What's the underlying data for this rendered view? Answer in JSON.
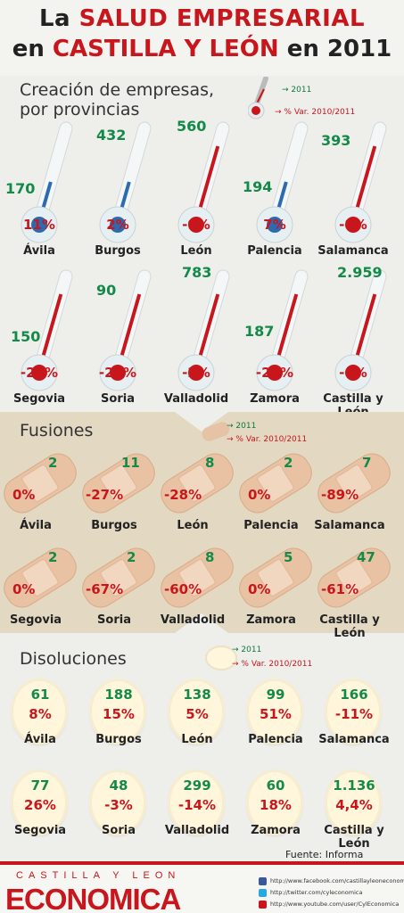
{
  "header": {
    "line1_a": "La ",
    "line1_b": "SALUD EMPRESARIAL",
    "line2_a": "en ",
    "line2_b": "CASTILLA Y LEÓN",
    "line2_c": " en 2011"
  },
  "creacion": {
    "title_l1": "Creación de empresas,",
    "title_l2": "por provincias",
    "legend_year": "2011",
    "legend_var": "% Var. 2010/2011",
    "items": [
      {
        "name": "Ávila",
        "value": "170",
        "pct": "11%",
        "trend": "up"
      },
      {
        "name": "Burgos",
        "value": "432",
        "pct": "2%",
        "trend": "up"
      },
      {
        "name": "León",
        "value": "560",
        "pct": "-9%",
        "trend": "down"
      },
      {
        "name": "Palencia",
        "value": "194",
        "pct": "7%",
        "trend": "up"
      },
      {
        "name": "Salamanca",
        "value": "393",
        "pct": "-8%",
        "trend": "down"
      },
      {
        "name": "Segovia",
        "value": "150",
        "pct": "-27%",
        "trend": "down"
      },
      {
        "name": "Soria",
        "value": "90",
        "pct": "-28%",
        "trend": "down"
      },
      {
        "name": "Valladolid",
        "value": "783",
        "pct": "-2%",
        "trend": "down"
      },
      {
        "name": "Zamora",
        "value": "187",
        "pct": "-20%",
        "trend": "down"
      },
      {
        "name": "Castilla y León",
        "value": "2.959",
        "pct": "-6%",
        "trend": "down"
      }
    ]
  },
  "fusiones": {
    "title": "Fusiones",
    "legend_year": "2011",
    "legend_var": "% Var. 2010/2011",
    "items": [
      {
        "name": "Ávila",
        "value": "2",
        "pct": "0%"
      },
      {
        "name": "Burgos",
        "value": "11",
        "pct": "-27%"
      },
      {
        "name": "León",
        "value": "8",
        "pct": "-28%"
      },
      {
        "name": "Palencia",
        "value": "2",
        "pct": "0%"
      },
      {
        "name": "Salamanca",
        "value": "7",
        "pct": "-89%"
      },
      {
        "name": "Segovia",
        "value": "2",
        "pct": "0%"
      },
      {
        "name": "Soria",
        "value": "2",
        "pct": "-67%"
      },
      {
        "name": "Valladolid",
        "value": "8",
        "pct": "-60%"
      },
      {
        "name": "Zamora",
        "value": "5",
        "pct": "0%"
      },
      {
        "name": "Castilla y León",
        "value": "47",
        "pct": "-61%"
      }
    ]
  },
  "disoluciones": {
    "title": "Disoluciones",
    "legend_year": "2011",
    "legend_var": "% Var. 2010/2011",
    "items": [
      {
        "name": "Ávila",
        "value": "61",
        "pct": "8%"
      },
      {
        "name": "Burgos",
        "value": "188",
        "pct": "15%"
      },
      {
        "name": "León",
        "value": "138",
        "pct": "5%"
      },
      {
        "name": "Palencia",
        "value": "99",
        "pct": "51%"
      },
      {
        "name": "Salamanca",
        "value": "166",
        "pct": "-11%"
      },
      {
        "name": "Segovia",
        "value": "77",
        "pct": "26%"
      },
      {
        "name": "Soria",
        "value": "48",
        "pct": "-3%"
      },
      {
        "name": "Valladolid",
        "value": "299",
        "pct": "-14%"
      },
      {
        "name": "Zamora",
        "value": "60",
        "pct": "18%"
      },
      {
        "name": "Castilla y León",
        "value": "1.136",
        "pct": "4,4%"
      }
    ]
  },
  "source": "Fuente: Informa",
  "footer": {
    "brand_top": "CASTILLA Y LEON",
    "brand_main": "ECONOMICA",
    "links": [
      {
        "icon": "facebook-icon",
        "color": "#3b5998",
        "text": "http://www.facebook.com/castillayleoneconomica"
      },
      {
        "icon": "twitter-icon",
        "color": "#29a9e1",
        "text": "http://twitter.com/cyleconomica"
      },
      {
        "icon": "youtube-icon",
        "color": "#c8161d",
        "text": "http://www.youtube.com/user/CylEconomica"
      }
    ]
  },
  "colors": {
    "green": "#138a48",
    "red": "#c8161d",
    "blue": "#2b6cb0"
  }
}
